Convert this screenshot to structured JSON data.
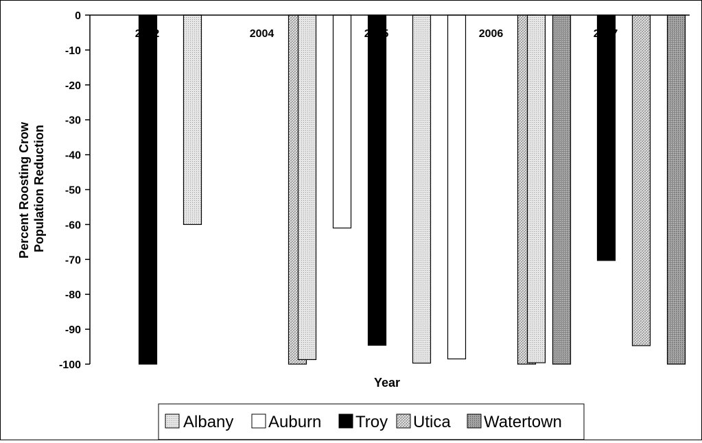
{
  "chart_data": {
    "type": "bar",
    "xlabel": "Year",
    "ylabel_line1": "Percent Roosting Crow",
    "ylabel_line2": "Population Reduction",
    "ylim": [
      -100,
      0
    ],
    "yticks": [
      0,
      -10,
      -20,
      -30,
      -40,
      -50,
      -60,
      -70,
      -80,
      -90,
      -100
    ],
    "categories": [
      "2002",
      "2004",
      "2005",
      "2006",
      "2007"
    ],
    "series": [
      {
        "name": "Albany",
        "pattern": "albany",
        "values": [
          null,
          -60,
          -98.7,
          -99.7,
          -99.6
        ]
      },
      {
        "name": "Auburn",
        "pattern": "auburn",
        "values": [
          null,
          null,
          -61,
          -98.5,
          null
        ]
      },
      {
        "name": "Troy",
        "pattern": "troy",
        "values": [
          -100,
          null,
          -94.6,
          null,
          -70.3
        ]
      },
      {
        "name": "Utica",
        "pattern": "utica",
        "values": [
          null,
          -100,
          null,
          -100,
          -94.7
        ]
      },
      {
        "name": "Watertown",
        "pattern": "watertown",
        "values": [
          null,
          null,
          null,
          -100,
          -100
        ]
      }
    ],
    "legend_position": "bottom",
    "grid": false
  }
}
